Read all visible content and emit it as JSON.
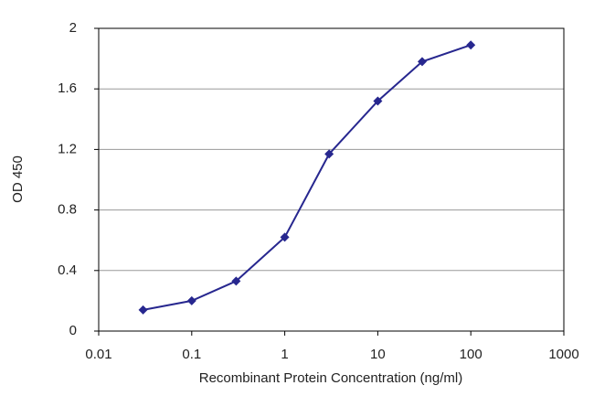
{
  "chart_data": {
    "type": "line",
    "x_label": "Recombinant Protein Concentration (ng/ml)",
    "y_label": "OD 450",
    "x": [
      0.03,
      0.1,
      0.3,
      1,
      3,
      10,
      30,
      100
    ],
    "values": [
      0.14,
      0.2,
      0.33,
      0.62,
      1.17,
      1.52,
      1.78,
      1.89
    ],
    "color": "#27278f",
    "xscale": "log",
    "xlim": [
      0.01,
      1000
    ],
    "xticks": [
      0.01,
      0.1,
      1,
      10,
      100,
      1000
    ],
    "ylim": [
      0,
      2
    ],
    "yticks": [
      0,
      0.4,
      0.8,
      1.2,
      1.6,
      2
    ],
    "grid": true
  }
}
